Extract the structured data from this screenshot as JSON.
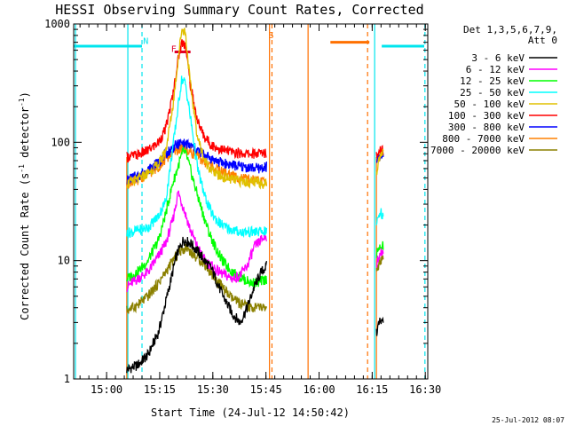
{
  "chart_data": {
    "type": "line",
    "title": "HESSI Observing Summary Count Rates, Corrected",
    "xlabel": "Start Time (24-Jul-12 14:50:42)",
    "ylabel_main": "Corrected Count Rate (s",
    "ylabel_sup1": "-1",
    "ylabel_mid": " detector",
    "ylabel_sup2": "-1",
    "ylabel_end": ")",
    "yscale": "log",
    "ylim": [
      1,
      1000
    ],
    "xlim_minutes": [
      0,
      100
    ],
    "grid": false,
    "x_ticks": [
      {
        "min": 9.3,
        "label": "15:00"
      },
      {
        "min": 24.3,
        "label": "15:15"
      },
      {
        "min": 39.3,
        "label": "15:30"
      },
      {
        "min": 54.3,
        "label": "15:45"
      },
      {
        "min": 69.3,
        "label": "16:00"
      },
      {
        "min": 84.3,
        "label": "16:15"
      },
      {
        "min": 99.3,
        "label": "16:30"
      }
    ],
    "y_ticks": [
      {
        "value": 1,
        "label": "1"
      },
      {
        "value": 10,
        "label": "10"
      },
      {
        "value": 100,
        "label": "100"
      },
      {
        "value": 1000,
        "label": "1000"
      }
    ],
    "legend": {
      "position": "right",
      "header1": "Det 1,3,5,6,7,9,",
      "header2": "Att 0"
    },
    "series": [
      {
        "name": "3 - 6 keV",
        "color": "#000000",
        "seg1": [
          [
            15,
            1.2
          ],
          [
            18,
            1.3
          ],
          [
            21,
            1.6
          ],
          [
            24,
            2.5
          ],
          [
            27,
            6
          ],
          [
            29,
            11
          ],
          [
            31,
            15
          ],
          [
            33,
            14
          ],
          [
            35,
            12
          ],
          [
            37,
            10
          ],
          [
            39,
            8.5
          ],
          [
            41,
            6
          ],
          [
            43,
            4.5
          ],
          [
            45,
            3.5
          ],
          [
            47,
            3.0
          ],
          [
            49,
            4
          ],
          [
            51,
            6
          ],
          [
            53,
            8
          ],
          [
            54.5,
            9
          ]
        ],
        "seg2": [
          [
            85.5,
            2.5
          ],
          [
            86.5,
            3
          ],
          [
            87.5,
            3
          ]
        ]
      },
      {
        "name": "6 - 12 keV",
        "color": "#ff00ff",
        "seg1": [
          [
            15,
            6
          ],
          [
            18,
            7
          ],
          [
            21,
            8
          ],
          [
            24,
            11
          ],
          [
            26,
            14
          ],
          [
            28,
            22
          ],
          [
            29.5,
            38
          ],
          [
            31,
            28
          ],
          [
            33,
            18
          ],
          [
            35,
            13
          ],
          [
            37,
            10
          ],
          [
            39,
            9
          ],
          [
            41,
            8
          ],
          [
            43,
            7.5
          ],
          [
            45,
            7
          ],
          [
            47,
            7.5
          ],
          [
            49,
            9
          ],
          [
            51,
            13
          ],
          [
            53,
            15
          ],
          [
            54.5,
            16
          ]
        ],
        "seg2": [
          [
            85.5,
            9
          ],
          [
            86.5,
            12
          ],
          [
            87.5,
            12
          ]
        ]
      },
      {
        "name": "12 - 25 keV",
        "color": "#00ff00",
        "seg1": [
          [
            15,
            7
          ],
          [
            18,
            8
          ],
          [
            21,
            10
          ],
          [
            24,
            15
          ],
          [
            26,
            25
          ],
          [
            28,
            45
          ],
          [
            30,
            70
          ],
          [
            31,
            85
          ],
          [
            32,
            75
          ],
          [
            34,
            45
          ],
          [
            36,
            28
          ],
          [
            38,
            18
          ],
          [
            40,
            13
          ],
          [
            42,
            10
          ],
          [
            44,
            8.5
          ],
          [
            46,
            7.5
          ],
          [
            48,
            7
          ],
          [
            50,
            6.5
          ],
          [
            52,
            6.5
          ],
          [
            54.5,
            7
          ]
        ],
        "seg2": [
          [
            85.5,
            11
          ],
          [
            86.5,
            14
          ],
          [
            87.5,
            13
          ]
        ]
      },
      {
        "name": "25 - 50 keV",
        "color": "#00ffff",
        "seg1": [
          [
            15,
            17
          ],
          [
            18,
            18
          ],
          [
            21,
            19
          ],
          [
            24,
            24
          ],
          [
            26,
            32
          ],
          [
            28,
            90
          ],
          [
            29.5,
            200
          ],
          [
            30.5,
            340
          ],
          [
            31.5,
            320
          ],
          [
            33,
            160
          ],
          [
            35,
            60
          ],
          [
            37,
            35
          ],
          [
            39,
            25
          ],
          [
            41,
            21
          ],
          [
            43,
            19
          ],
          [
            45,
            18
          ],
          [
            47,
            17.5
          ],
          [
            49,
            17.5
          ],
          [
            51,
            17.5
          ],
          [
            54.5,
            17.5
          ]
        ],
        "seg2": [
          [
            85.5,
            20
          ],
          [
            86.5,
            26
          ],
          [
            87.5,
            24
          ]
        ]
      },
      {
        "name": "50 - 100 keV",
        "color": "#e0c000",
        "seg1": [
          [
            15,
            45
          ],
          [
            18,
            48
          ],
          [
            21,
            55
          ],
          [
            24,
            65
          ],
          [
            26,
            85
          ],
          [
            28,
            200
          ],
          [
            29.5,
            500
          ],
          [
            30.5,
            900
          ],
          [
            31.5,
            870
          ],
          [
            33,
            300
          ],
          [
            35,
            110
          ],
          [
            37,
            70
          ],
          [
            39,
            58
          ],
          [
            41,
            52
          ],
          [
            43,
            50
          ],
          [
            45,
            48
          ],
          [
            47,
            47
          ],
          [
            49,
            46
          ],
          [
            51,
            46
          ],
          [
            54.5,
            45
          ]
        ],
        "seg2": [
          [
            85.5,
            55
          ],
          [
            86.5,
            80
          ],
          [
            87.5,
            80
          ]
        ]
      },
      {
        "name": "100 - 300 keV",
        "color": "#ff0000",
        "seg1": [
          [
            15,
            75
          ],
          [
            18,
            78
          ],
          [
            21,
            85
          ],
          [
            24,
            100
          ],
          [
            26,
            130
          ],
          [
            28,
            250
          ],
          [
            29.5,
            500
          ],
          [
            30.5,
            700
          ],
          [
            31.5,
            680
          ],
          [
            33,
            300
          ],
          [
            35,
            150
          ],
          [
            37,
            110
          ],
          [
            39,
            95
          ],
          [
            41,
            88
          ],
          [
            43,
            85
          ],
          [
            45,
            82
          ],
          [
            47,
            81
          ],
          [
            49,
            80
          ],
          [
            51,
            80
          ],
          [
            54.5,
            82
          ]
        ],
        "seg2": [
          [
            85.5,
            75
          ],
          [
            86.5,
            85
          ],
          [
            87.5,
            85
          ]
        ]
      },
      {
        "name": "300 - 800 keV",
        "color": "#0000ff",
        "seg1": [
          [
            15,
            48
          ],
          [
            18,
            52
          ],
          [
            21,
            58
          ],
          [
            24,
            68
          ],
          [
            26,
            80
          ],
          [
            28,
            90
          ],
          [
            30,
            98
          ],
          [
            32,
            96
          ],
          [
            34,
            90
          ],
          [
            36,
            82
          ],
          [
            38,
            75
          ],
          [
            40,
            70
          ],
          [
            42,
            67
          ],
          [
            44,
            65
          ],
          [
            46,
            63
          ],
          [
            48,
            62
          ],
          [
            50,
            61
          ],
          [
            52,
            60
          ],
          [
            54.5,
            62
          ]
        ],
        "seg2": [
          [
            85.5,
            65
          ],
          [
            86.5,
            75
          ],
          [
            87.5,
            75
          ]
        ]
      },
      {
        "name": "800 - 7000 keV",
        "color": "#ff8000",
        "seg1": [
          [
            15,
            45
          ],
          [
            18,
            48
          ],
          [
            21,
            54
          ],
          [
            24,
            62
          ],
          [
            26,
            72
          ],
          [
            28,
            82
          ],
          [
            30,
            88
          ],
          [
            32,
            86
          ],
          [
            34,
            80
          ],
          [
            36,
            72
          ],
          [
            38,
            65
          ],
          [
            40,
            60
          ],
          [
            42,
            56
          ],
          [
            44,
            53
          ],
          [
            46,
            51
          ],
          [
            48,
            49
          ],
          [
            50,
            48
          ],
          [
            52,
            47
          ],
          [
            54.5,
            46
          ]
        ],
        "seg2": [
          [
            85.5,
            70
          ],
          [
            86.5,
            82
          ],
          [
            87.5,
            82
          ]
        ]
      },
      {
        "name": "7000 - 20000 keV",
        "color": "#8b8000",
        "seg1": [
          [
            15,
            3.8
          ],
          [
            18,
            4.2
          ],
          [
            21,
            5
          ],
          [
            24,
            6.5
          ],
          [
            26,
            8
          ],
          [
            28,
            10
          ],
          [
            30,
            12
          ],
          [
            32,
            13
          ],
          [
            34,
            11
          ],
          [
            36,
            10
          ],
          [
            38,
            8.5
          ],
          [
            40,
            7
          ],
          [
            42,
            6
          ],
          [
            44,
            5
          ],
          [
            46,
            4.5
          ],
          [
            48,
            4.2
          ],
          [
            50,
            4.0
          ],
          [
            52,
            4.0
          ],
          [
            54.5,
            4.0
          ]
        ],
        "seg2": [
          [
            85.5,
            8
          ],
          [
            86.5,
            10
          ],
          [
            87.5,
            10
          ]
        ]
      }
    ],
    "attenuator": {
      "color": "#ff7000",
      "bottom": [
        [
          15,
          1
        ],
        [
          15,
          75
        ]
      ],
      "seg2": [
        [
          85.5,
          1
        ],
        [
          85.5,
          75
        ]
      ]
    },
    "night_bars": {
      "color": "#00e5ee",
      "level": 650,
      "spans": [
        [
          0,
          19.3
        ],
        [
          87,
          99
        ]
      ]
    },
    "saa_bar": {
      "color": "#ff7000",
      "level": 700,
      "span": [
        72.5,
        83.5
      ]
    },
    "flare_bar": {
      "color": "#e0002a",
      "level": 580,
      "span": [
        28.5,
        33
      ]
    },
    "vlines": [
      {
        "min": 0.5,
        "color": "#00e5ee",
        "style": "solid"
      },
      {
        "min": 15.3,
        "color": "#00e5ee",
        "style": "solid"
      },
      {
        "min": 19.3,
        "color": "#00e5ee",
        "style": "dashed"
      },
      {
        "min": 55.3,
        "color": "#ff7000",
        "style": "solid"
      },
      {
        "min": 56.0,
        "color": "#ff7000",
        "style": "dashed"
      },
      {
        "min": 66.2,
        "color": "#ff7000",
        "style": "solid"
      },
      {
        "min": 83.0,
        "color": "#ff7000",
        "style": "dashed"
      },
      {
        "min": 85.0,
        "color": "#00e5ee",
        "style": "solid"
      },
      {
        "min": 99.2,
        "color": "#00e5ee",
        "style": "dashed"
      }
    ],
    "markers": [
      {
        "label": "N",
        "min": 19.6,
        "value": 680,
        "color": "#00e5ee"
      },
      {
        "label": "S",
        "min": 55.0,
        "value": 760,
        "color": "#ff7000"
      },
      {
        "label": "F",
        "min": 27.5,
        "value": 580,
        "color": "#e0002a"
      }
    ],
    "timestamp": "25-Jul-2012 08:07"
  }
}
